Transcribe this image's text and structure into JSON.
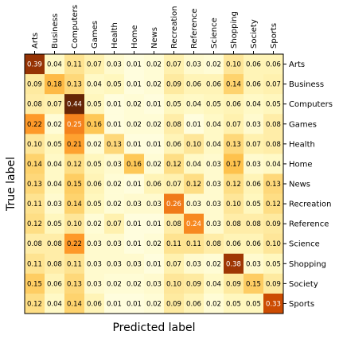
{
  "chart_data": {
    "type": "heatmap",
    "title": "",
    "xlabel": "Predicted label",
    "ylabel": "True label",
    "x_tick_position": "top",
    "y_tick_position": "right",
    "colormap": "YlOrBr",
    "color_range": [
      0,
      0.44
    ],
    "categories": [
      "Arts",
      "Business",
      "Computers",
      "Games",
      "Health",
      "Home",
      "News",
      "Recreation",
      "Reference",
      "Science",
      "Shopping",
      "Society",
      "Sports"
    ],
    "matrix": [
      [
        0.39,
        0.04,
        0.11,
        0.07,
        0.03,
        0.01,
        0.02,
        0.07,
        0.03,
        0.02,
        0.1,
        0.06,
        0.06
      ],
      [
        0.09,
        0.18,
        0.13,
        0.04,
        0.05,
        0.01,
        0.02,
        0.09,
        0.06,
        0.06,
        0.14,
        0.06,
        0.07
      ],
      [
        0.08,
        0.07,
        0.44,
        0.05,
        0.01,
        0.02,
        0.01,
        0.05,
        0.04,
        0.05,
        0.06,
        0.04,
        0.05
      ],
      [
        0.22,
        0.02,
        0.25,
        0.16,
        0.01,
        0.02,
        0.02,
        0.08,
        0.01,
        0.04,
        0.07,
        0.03,
        0.08
      ],
      [
        0.1,
        0.05,
        0.21,
        0.02,
        0.13,
        0.01,
        0.01,
        0.06,
        0.1,
        0.04,
        0.13,
        0.07,
        0.08
      ],
      [
        0.14,
        0.04,
        0.12,
        0.05,
        0.03,
        0.16,
        0.02,
        0.12,
        0.04,
        0.03,
        0.17,
        0.03,
        0.04
      ],
      [
        0.13,
        0.04,
        0.15,
        0.06,
        0.02,
        0.01,
        0.06,
        0.07,
        0.12,
        0.03,
        0.12,
        0.06,
        0.13
      ],
      [
        0.11,
        0.03,
        0.14,
        0.05,
        0.02,
        0.03,
        0.03,
        0.26,
        0.03,
        0.03,
        0.1,
        0.05,
        0.12
      ],
      [
        0.12,
        0.05,
        0.1,
        0.02,
        0.07,
        0.01,
        0.01,
        0.08,
        0.24,
        0.03,
        0.08,
        0.08,
        0.09
      ],
      [
        0.08,
        0.08,
        0.22,
        0.03,
        0.03,
        0.01,
        0.02,
        0.11,
        0.11,
        0.08,
        0.06,
        0.06,
        0.1
      ],
      [
        0.11,
        0.08,
        0.11,
        0.03,
        0.03,
        0.03,
        0.01,
        0.07,
        0.03,
        0.02,
        0.38,
        0.03,
        0.05
      ],
      [
        0.15,
        0.06,
        0.13,
        0.03,
        0.02,
        0.02,
        0.03,
        0.1,
        0.09,
        0.04,
        0.09,
        0.15,
        0.09
      ],
      [
        0.12,
        0.04,
        0.14,
        0.06,
        0.01,
        0.01,
        0.02,
        0.09,
        0.06,
        0.02,
        0.05,
        0.05,
        0.33
      ]
    ]
  }
}
